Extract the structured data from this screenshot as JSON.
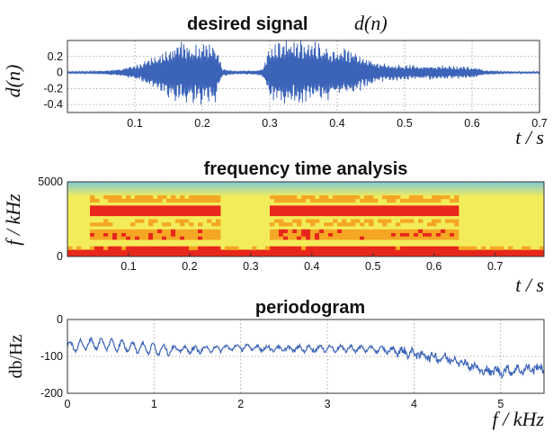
{
  "figure_titles": {
    "signal_title_text": "desired signal",
    "signal_title_math": "d(n)",
    "spectrogram_title": "frequency time analysis",
    "periodogram_title": "periodogram"
  },
  "chart_data": [
    {
      "type": "line",
      "title": "desired signal d(n)",
      "xlabel": "t / s",
      "ylabel": "d(n)",
      "xlim": [
        0,
        0.7
      ],
      "ylim": [
        -0.5,
        0.4
      ],
      "xticks": [
        "0.1",
        "0.2",
        "0.3",
        "0.4",
        "0.5",
        "0.6",
        "0.7"
      ],
      "yticks": [
        "0.2",
        "0",
        "-0.2",
        "-0.4"
      ],
      "grid": true,
      "series": [
        {
          "color": "#3b63b8",
          "envelope": {
            "x": [
              0.0,
              0.05,
              0.08,
              0.11,
              0.14,
              0.17,
              0.2,
              0.22,
              0.23,
              0.25,
              0.28,
              0.29,
              0.3,
              0.32,
              0.35,
              0.38,
              0.42,
              0.44,
              0.46,
              0.5,
              0.55,
              0.6,
              0.62,
              0.65,
              0.7
            ],
            "amplitude": [
              0.01,
              0.02,
              0.05,
              0.12,
              0.28,
              0.4,
              0.42,
              0.38,
              0.05,
              0.02,
              0.03,
              0.06,
              0.32,
              0.45,
              0.42,
              0.38,
              0.3,
              0.22,
              0.12,
              0.1,
              0.09,
              0.08,
              0.03,
              0.01,
              0.01
            ]
          }
        }
      ]
    },
    {
      "type": "heatmap",
      "title": "frequency time analysis",
      "xlabel": "t / s",
      "ylabel": "f / kHz",
      "xlim": [
        0,
        0.78
      ],
      "ylim": [
        0,
        5000
      ],
      "xticks": [
        "0.1",
        "0.2",
        "0.3",
        "0.4",
        "0.5",
        "0.6",
        "0.7"
      ],
      "yticks": [
        "5000",
        "0"
      ],
      "colormap": [
        "#7ec8d8",
        "#f3ec5a",
        "#f5a623",
        "#e8271b"
      ],
      "voiced_segments_s": [
        [
          0.04,
          0.25
        ],
        [
          0.33,
          0.5
        ],
        [
          0.5,
          0.64
        ]
      ]
    },
    {
      "type": "line",
      "title": "periodogram",
      "xlabel": "f / kHz",
      "ylabel": "db/Hz",
      "xlim": [
        0,
        5.5
      ],
      "ylim": [
        -200,
        0
      ],
      "xticks": [
        "0",
        "1",
        "2",
        "3",
        "4",
        "5"
      ],
      "yticks": [
        "0",
        "-100",
        "-200"
      ],
      "grid": true,
      "series": [
        {
          "color": "#3b63b8",
          "trend": {
            "x": [
              0.0,
              0.3,
              0.6,
              1.0,
              1.5,
              2.0,
              2.5,
              3.0,
              3.5,
              3.8,
              4.2,
              4.5,
              4.8,
              5.0,
              5.3,
              5.5
            ],
            "y": [
              -75,
              -65,
              -70,
              -80,
              -82,
              -75,
              -80,
              -78,
              -80,
              -85,
              -100,
              -110,
              -140,
              -140,
              -135,
              -130
            ]
          }
        }
      ]
    }
  ]
}
